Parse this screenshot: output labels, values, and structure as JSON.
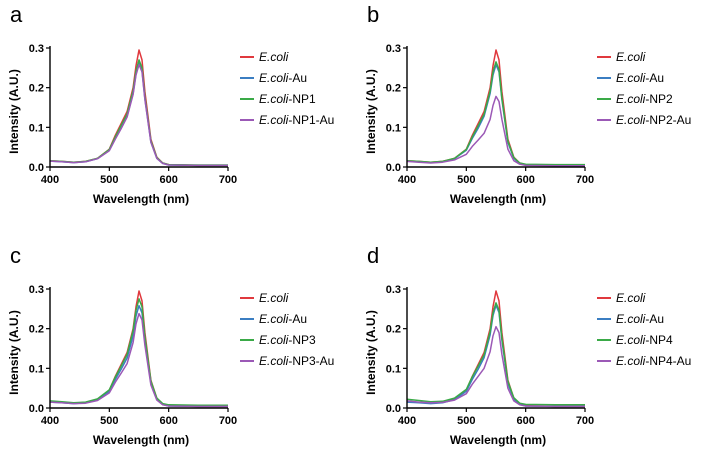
{
  "watermark": "",
  "colors": {
    "ecoli": "#e0393e",
    "au": "#3b7ec2",
    "np": "#3aaa47",
    "npau": "#9b59b6"
  },
  "chart_data": [
    {
      "type": "line",
      "panel_label": "a",
      "xlabel": "Wavelength (nm)",
      "ylabel": "Intensity (A.U.)",
      "xlim": [
        400,
        700
      ],
      "ylim": [
        0,
        0.3
      ],
      "xticks": [
        "400",
        "500",
        "600",
        "700"
      ],
      "yticks": [
        "0.0",
        "0.1",
        "0.2",
        "0.3"
      ],
      "legend_position": "right",
      "x": [
        400,
        420,
        440,
        460,
        480,
        500,
        510,
        520,
        530,
        540,
        545,
        550,
        555,
        560,
        570,
        580,
        590,
        600,
        650,
        700
      ],
      "series": [
        {
          "name_italic": "E.coli",
          "name_suffix": "",
          "color": "#e0393e",
          "values": [
            0.016,
            0.014,
            0.012,
            0.014,
            0.022,
            0.045,
            0.08,
            0.11,
            0.14,
            0.2,
            0.255,
            0.295,
            0.27,
            0.19,
            0.07,
            0.025,
            0.01,
            0.006,
            0.004,
            0.004
          ]
        },
        {
          "name_italic": "E.coli",
          "name_suffix": "-Au",
          "color": "#3b7ec2",
          "values": [
            0.015,
            0.013,
            0.011,
            0.013,
            0.021,
            0.042,
            0.072,
            0.098,
            0.128,
            0.185,
            0.235,
            0.262,
            0.243,
            0.172,
            0.063,
            0.022,
            0.009,
            0.005,
            0.004,
            0.004
          ]
        },
        {
          "name_italic": "E.coli",
          "name_suffix": "-NP1",
          "color": "#3aaa47",
          "values": [
            0.016,
            0.014,
            0.012,
            0.014,
            0.022,
            0.044,
            0.076,
            0.105,
            0.134,
            0.193,
            0.242,
            0.27,
            0.25,
            0.177,
            0.066,
            0.024,
            0.01,
            0.006,
            0.005,
            0.005
          ]
        },
        {
          "name_italic": "E.coli",
          "name_suffix": "-NP1-Au",
          "color": "#9b59b6",
          "values": [
            0.015,
            0.013,
            0.011,
            0.013,
            0.021,
            0.041,
            0.07,
            0.097,
            0.126,
            0.183,
            0.232,
            0.258,
            0.24,
            0.17,
            0.062,
            0.022,
            0.009,
            0.005,
            0.004,
            0.004
          ]
        }
      ]
    },
    {
      "type": "line",
      "panel_label": "b",
      "xlabel": "Wavelength (nm)",
      "ylabel": "Intensity (A.U.)",
      "xlim": [
        400,
        700
      ],
      "ylim": [
        0,
        0.3
      ],
      "xticks": [
        "400",
        "500",
        "600",
        "700"
      ],
      "yticks": [
        "0.0",
        "0.1",
        "0.2",
        "0.3"
      ],
      "legend_position": "right",
      "x": [
        400,
        420,
        440,
        460,
        480,
        500,
        510,
        520,
        530,
        540,
        545,
        550,
        555,
        560,
        570,
        580,
        590,
        600,
        650,
        700
      ],
      "series": [
        {
          "name_italic": "E.coli",
          "name_suffix": "",
          "color": "#e0393e",
          "values": [
            0.016,
            0.014,
            0.012,
            0.014,
            0.022,
            0.045,
            0.08,
            0.11,
            0.14,
            0.2,
            0.255,
            0.295,
            0.27,
            0.19,
            0.07,
            0.025,
            0.01,
            0.006,
            0.004,
            0.004
          ]
        },
        {
          "name_italic": "E.coli",
          "name_suffix": "-Au",
          "color": "#3b7ec2",
          "values": [
            0.015,
            0.013,
            0.011,
            0.013,
            0.021,
            0.042,
            0.072,
            0.098,
            0.128,
            0.185,
            0.232,
            0.258,
            0.24,
            0.17,
            0.062,
            0.022,
            0.009,
            0.005,
            0.004,
            0.004
          ]
        },
        {
          "name_italic": "E.coli",
          "name_suffix": "-NP2",
          "color": "#3aaa47",
          "values": [
            0.016,
            0.014,
            0.012,
            0.014,
            0.022,
            0.044,
            0.076,
            0.104,
            0.133,
            0.191,
            0.24,
            0.265,
            0.246,
            0.174,
            0.065,
            0.024,
            0.01,
            0.007,
            0.006,
            0.006
          ]
        },
        {
          "name_italic": "E.coli",
          "name_suffix": "-NP2-Au",
          "color": "#9b59b6",
          "values": [
            0.014,
            0.012,
            0.01,
            0.012,
            0.018,
            0.032,
            0.052,
            0.068,
            0.085,
            0.12,
            0.155,
            0.178,
            0.165,
            0.12,
            0.045,
            0.016,
            0.007,
            0.004,
            0.003,
            0.003
          ]
        }
      ]
    },
    {
      "type": "line",
      "panel_label": "c",
      "xlabel": "Wavelength (nm)",
      "ylabel": "Intensity (A.U.)",
      "xlim": [
        400,
        700
      ],
      "ylim": [
        0,
        0.3
      ],
      "xticks": [
        "400",
        "500",
        "600",
        "700"
      ],
      "yticks": [
        "0.0",
        "0.1",
        "0.2",
        "0.3"
      ],
      "legend_position": "right",
      "x": [
        400,
        420,
        440,
        460,
        480,
        500,
        510,
        520,
        530,
        540,
        545,
        550,
        555,
        560,
        570,
        580,
        590,
        600,
        650,
        700
      ],
      "series": [
        {
          "name_italic": "E.coli",
          "name_suffix": "",
          "color": "#e0393e",
          "values": [
            0.016,
            0.014,
            0.012,
            0.014,
            0.022,
            0.045,
            0.08,
            0.11,
            0.14,
            0.2,
            0.255,
            0.295,
            0.27,
            0.19,
            0.07,
            0.025,
            0.01,
            0.006,
            0.004,
            0.004
          ]
        },
        {
          "name_italic": "E.coli",
          "name_suffix": "-Au",
          "color": "#3b7ec2",
          "values": [
            0.015,
            0.013,
            0.011,
            0.013,
            0.021,
            0.042,
            0.072,
            0.098,
            0.126,
            0.182,
            0.232,
            0.258,
            0.24,
            0.17,
            0.062,
            0.022,
            0.009,
            0.005,
            0.004,
            0.004
          ]
        },
        {
          "name_italic": "E.coli",
          "name_suffix": "-NP3",
          "color": "#3aaa47",
          "values": [
            0.018,
            0.016,
            0.013,
            0.015,
            0.023,
            0.046,
            0.078,
            0.106,
            0.135,
            0.195,
            0.246,
            0.275,
            0.255,
            0.18,
            0.068,
            0.025,
            0.011,
            0.008,
            0.007,
            0.007
          ]
        },
        {
          "name_italic": "E.coli",
          "name_suffix": "-NP3-Au",
          "color": "#9b59b6",
          "values": [
            0.015,
            0.013,
            0.011,
            0.012,
            0.019,
            0.038,
            0.065,
            0.088,
            0.112,
            0.165,
            0.212,
            0.238,
            0.222,
            0.158,
            0.058,
            0.02,
            0.008,
            0.005,
            0.004,
            0.004
          ]
        }
      ]
    },
    {
      "type": "line",
      "panel_label": "d",
      "xlabel": "Wavelength (nm)",
      "ylabel": "Intensity (A.U.)",
      "xlim": [
        400,
        700
      ],
      "ylim": [
        0,
        0.3
      ],
      "xticks": [
        "400",
        "500",
        "600",
        "700"
      ],
      "yticks": [
        "0.0",
        "0.1",
        "0.2",
        "0.3"
      ],
      "legend_position": "right",
      "x": [
        400,
        420,
        440,
        460,
        480,
        500,
        510,
        520,
        530,
        540,
        545,
        550,
        555,
        560,
        570,
        580,
        590,
        600,
        650,
        700
      ],
      "series": [
        {
          "name_italic": "E.coli",
          "name_suffix": "",
          "color": "#e0393e",
          "values": [
            0.016,
            0.014,
            0.012,
            0.014,
            0.022,
            0.045,
            0.08,
            0.11,
            0.14,
            0.2,
            0.255,
            0.295,
            0.27,
            0.19,
            0.07,
            0.025,
            0.01,
            0.006,
            0.004,
            0.004
          ]
        },
        {
          "name_italic": "E.coli",
          "name_suffix": "-Au",
          "color": "#3b7ec2",
          "values": [
            0.015,
            0.013,
            0.011,
            0.013,
            0.021,
            0.042,
            0.072,
            0.098,
            0.127,
            0.184,
            0.233,
            0.259,
            0.241,
            0.171,
            0.062,
            0.022,
            0.009,
            0.005,
            0.004,
            0.004
          ]
        },
        {
          "name_italic": "E.coli",
          "name_suffix": "-NP4",
          "color": "#3aaa47",
          "values": [
            0.022,
            0.019,
            0.016,
            0.017,
            0.025,
            0.047,
            0.079,
            0.106,
            0.134,
            0.192,
            0.24,
            0.265,
            0.247,
            0.176,
            0.067,
            0.026,
            0.012,
            0.009,
            0.008,
            0.008
          ]
        },
        {
          "name_italic": "E.coli",
          "name_suffix": "-NP4-Au",
          "color": "#9b59b6",
          "values": [
            0.018,
            0.015,
            0.013,
            0.014,
            0.02,
            0.036,
            0.06,
            0.08,
            0.1,
            0.142,
            0.182,
            0.205,
            0.19,
            0.135,
            0.05,
            0.018,
            0.008,
            0.005,
            0.004,
            0.004
          ]
        }
      ]
    }
  ]
}
